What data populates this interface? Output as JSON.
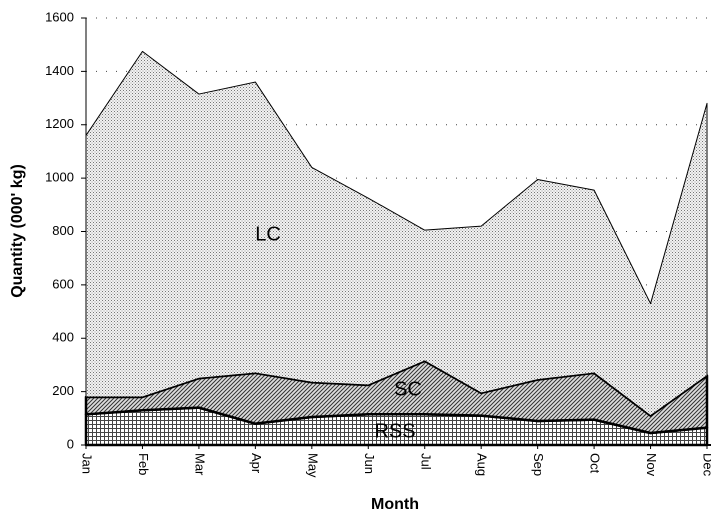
{
  "chart_data": {
    "type": "area",
    "stacked": true,
    "x_label": "Month",
    "y_label": "Quantity (000' kg)",
    "categories": [
      "Jan",
      "Feb",
      "Mar",
      "Apr",
      "May",
      "Jun",
      "Jul",
      "Aug",
      "Sep",
      "Oct",
      "Nov",
      "Dec"
    ],
    "series": [
      {
        "name": "RSS",
        "color": "#b0b0b0",
        "values": [
          115,
          130,
          140,
          80,
          105,
          115,
          115,
          110,
          90,
          95,
          45,
          65
        ]
      },
      {
        "name": "SC",
        "color": "#808080",
        "values": [
          65,
          50,
          110,
          190,
          130,
          110,
          200,
          85,
          155,
          175,
          65,
          195
        ]
      },
      {
        "name": "LC",
        "color": "#d8d8d8",
        "values": [
          980,
          1295,
          1065,
          1090,
          805,
          700,
          490,
          625,
          750,
          685,
          420,
          1020
        ]
      }
    ],
    "ylim": [
      0,
      1600
    ],
    "yticks": [
      0,
      200,
      400,
      600,
      800,
      1000,
      1200,
      1400,
      1600
    ],
    "grid": true
  }
}
